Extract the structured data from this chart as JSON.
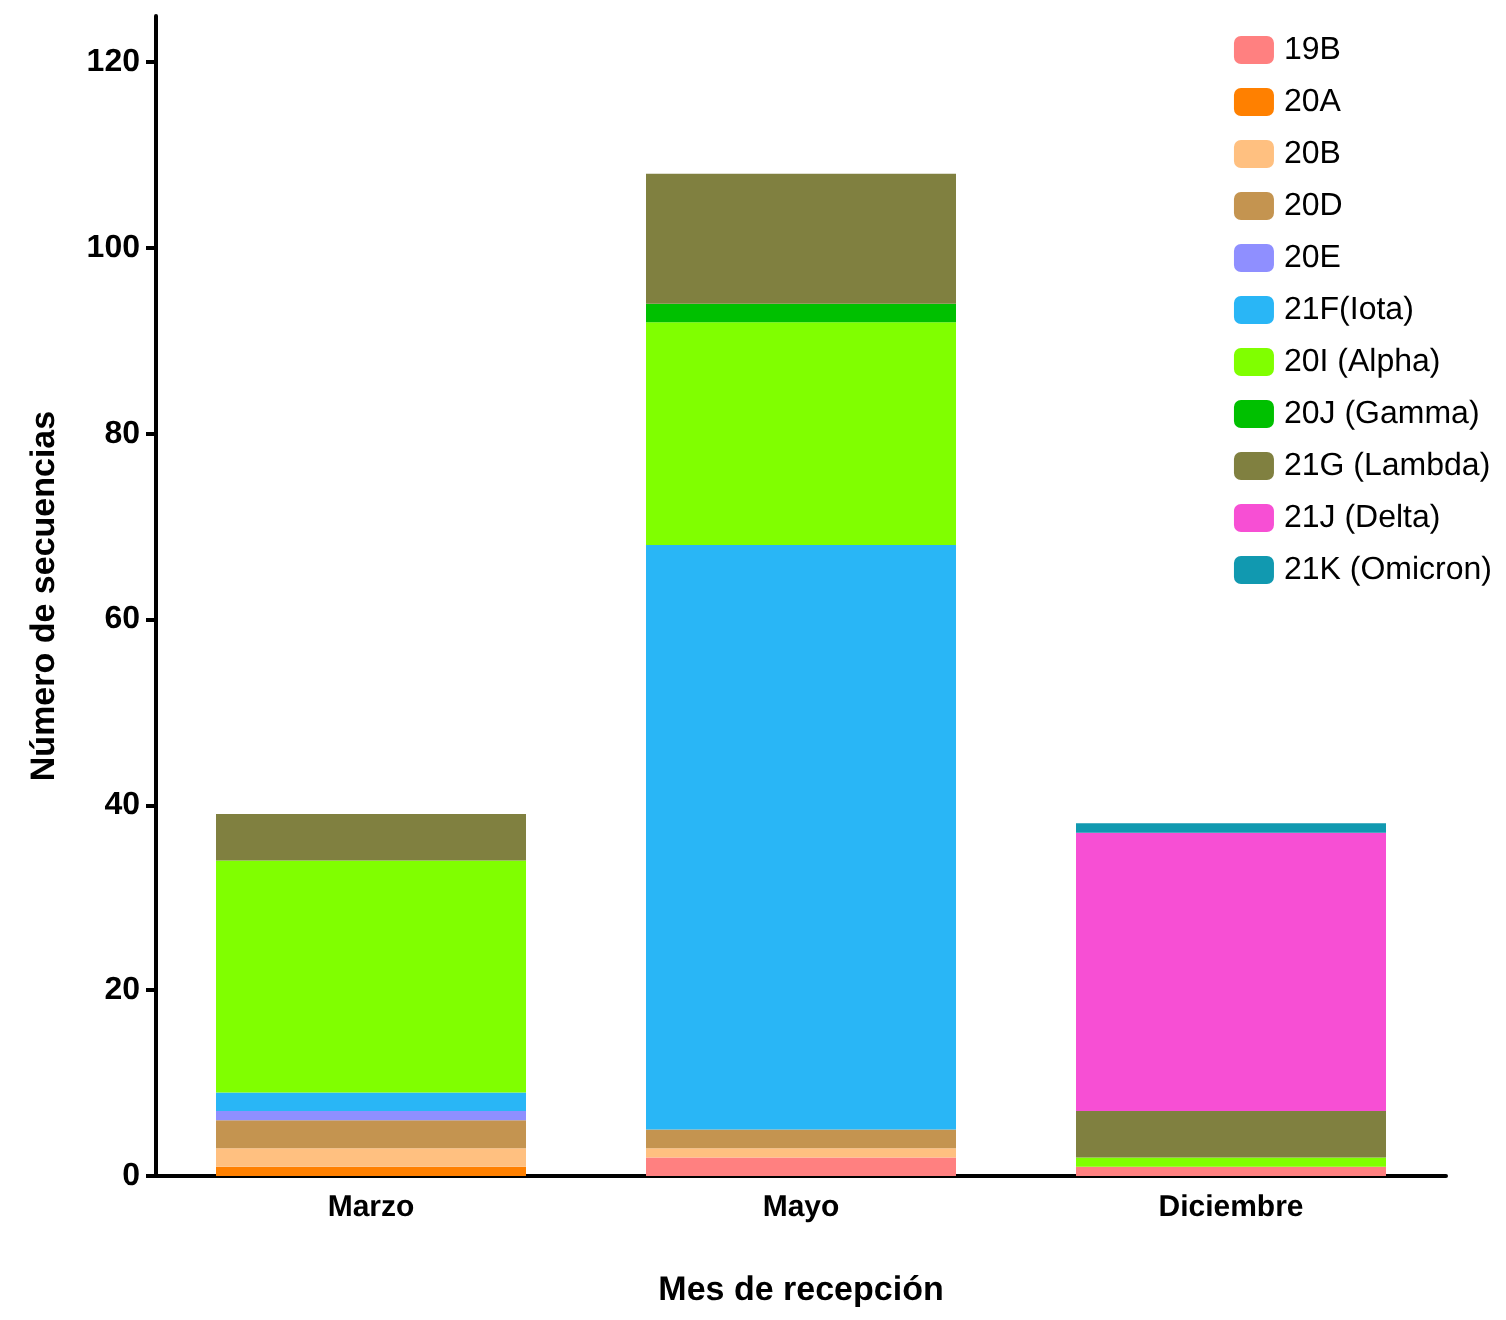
{
  "chart_data": {
    "type": "bar",
    "stacked": true,
    "xlabel": "Mes de recepción",
    "ylabel": "Número de secuencias",
    "categories": [
      "Marzo",
      "Mayo",
      "Diciembre"
    ],
    "series": [
      {
        "name": "19B",
        "color": "#ff8080",
        "values": [
          0,
          2,
          1
        ]
      },
      {
        "name": "20A",
        "color": "#ff8000",
        "values": [
          1,
          0,
          0
        ]
      },
      {
        "name": "20B",
        "color": "#ffc080",
        "values": [
          2,
          1,
          0
        ]
      },
      {
        "name": "20D",
        "color": "#c49450",
        "values": [
          3,
          2,
          0
        ]
      },
      {
        "name": "20E",
        "color": "#8f8fff",
        "values": [
          1,
          0,
          0
        ]
      },
      {
        "name": "21F(Iota)",
        "color": "#29b6f6",
        "values": [
          2,
          63,
          0
        ]
      },
      {
        "name": "20I (Alpha)",
        "color": "#80ff00",
        "values": [
          25,
          24,
          1
        ]
      },
      {
        "name": "20J (Gamma)",
        "color": "#00c000",
        "values": [
          0,
          2,
          0
        ]
      },
      {
        "name": "21G (Lambda)",
        "color": "#808040",
        "values": [
          5,
          14,
          5
        ]
      },
      {
        "name": "21J (Delta)",
        "color": "#f74fd4",
        "values": [
          0,
          0,
          30
        ]
      },
      {
        "name": "21K (Omicron)",
        "color": "#1199b0",
        "values": [
          0,
          0,
          1
        ]
      }
    ],
    "ylim": [
      0,
      125
    ],
    "yticks": [
      0,
      20,
      40,
      60,
      80,
      100,
      120
    ],
    "grid": false,
    "legend": "top right"
  }
}
